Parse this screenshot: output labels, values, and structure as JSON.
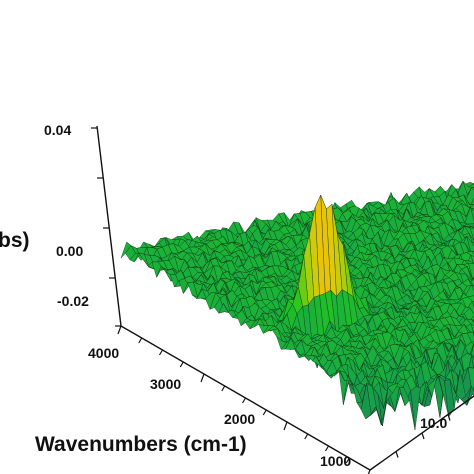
{
  "chart_data": {
    "type": "surface",
    "title": "",
    "zlabel_fragment": "bs)",
    "xlabel": "Wavenumbers (cm-1)",
    "z_ticks": [
      "0.04",
      "0.00",
      "-0.02"
    ],
    "x_ticks": [
      "4000",
      "3000",
      "2000",
      "1000"
    ],
    "y_tick_fragment": "10.0",
    "x_range": [
      4000,
      1000
    ],
    "z_range": [
      -0.02,
      0.04
    ],
    "colormap": [
      "#1a7a5c",
      "#17a845",
      "#22c61e",
      "#9ad010",
      "#e8c80a",
      "#ee6a12",
      "#e01818"
    ],
    "peak": {
      "wavenumber": 2350,
      "absorbance": 0.045
    }
  }
}
